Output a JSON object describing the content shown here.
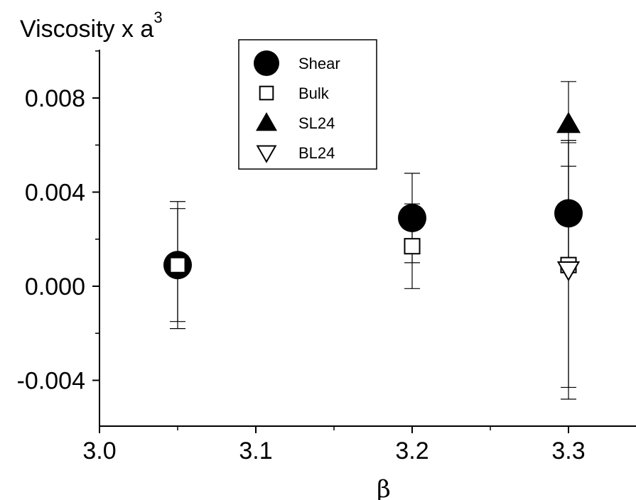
{
  "chart_data": {
    "type": "scatter",
    "title": "",
    "ylabel": "Viscosity x a",
    "ylabel_superscript": "3",
    "xlabel": "β",
    "xlim": [
      3.0,
      3.35
    ],
    "ylim": [
      -0.006,
      0.01
    ],
    "xticks": [
      3.0,
      3.1,
      3.2,
      3.3
    ],
    "xtick_labels": [
      "3.0",
      "3.1",
      "3.2",
      "3.3"
    ],
    "yticks": [
      -0.004,
      0.0,
      0.004,
      0.008
    ],
    "ytick_labels": [
      "-0.004",
      "0.000",
      "0.004",
      "0.008"
    ],
    "grid": false,
    "legend_position": "top-center",
    "series": [
      {
        "name": "Shear",
        "marker": "filled-circle",
        "points": [
          {
            "x": 3.05,
            "y": 0.0009,
            "err": 0.0027
          },
          {
            "x": 3.2,
            "y": 0.0029,
            "err": 0.0019
          },
          {
            "x": 3.3,
            "y": 0.0031,
            "err": 0.002
          }
        ]
      },
      {
        "name": "Bulk",
        "marker": "open-square",
        "points": [
          {
            "x": 3.05,
            "y": 0.0009,
            "err": 0.0024
          },
          {
            "x": 3.2,
            "y": 0.0017,
            "err": 0.0018
          },
          {
            "x": 3.3,
            "y": 0.0009,
            "err": 0.0052
          }
        ]
      },
      {
        "name": "SL24",
        "marker": "filled-triangle-up",
        "points": [
          {
            "x": 3.3,
            "y": 0.0069,
            "err": 0.0018
          }
        ]
      },
      {
        "name": "BL24",
        "marker": "open-triangle-down",
        "points": [
          {
            "x": 3.3,
            "y": 0.0007,
            "err": 0.0055
          }
        ]
      }
    ]
  }
}
